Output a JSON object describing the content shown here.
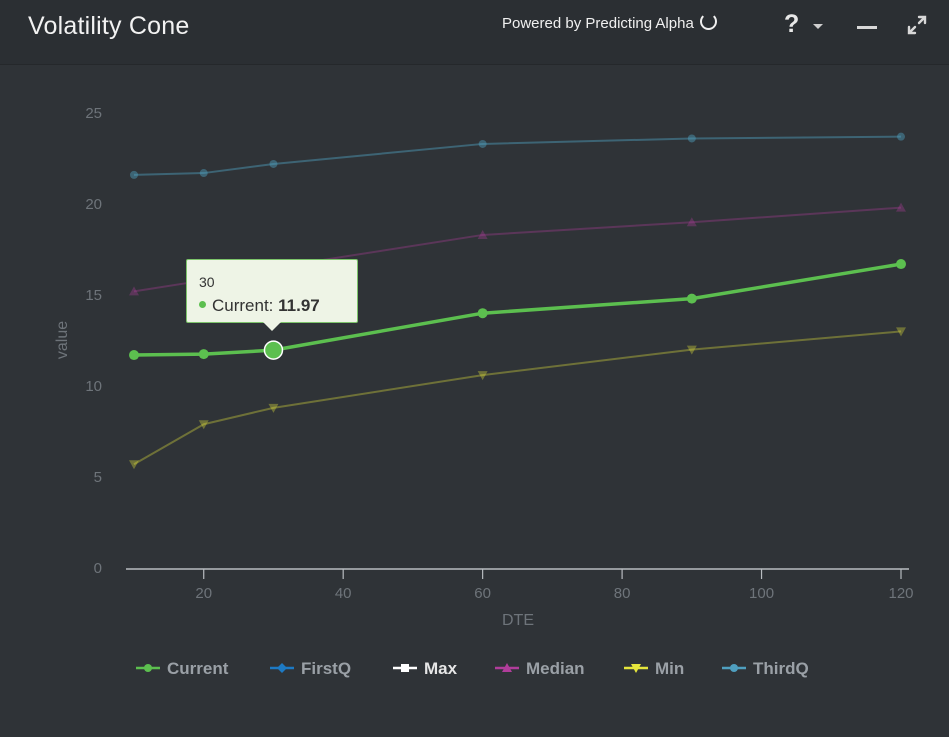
{
  "header": {
    "title": "Volatility Cone",
    "powered_by": "Powered by Predicting Alpha",
    "help_label": "?",
    "icons": [
      "refresh-icon",
      "help-icon",
      "chevron-down-icon",
      "minimize-icon",
      "expand-icon"
    ]
  },
  "tooltip": {
    "x_label": "30",
    "series_label": "Current:",
    "value": "11.97"
  },
  "chart_data": {
    "type": "line",
    "title": "",
    "xlabel": "DTE",
    "ylabel": "value",
    "xlim": [
      10,
      120
    ],
    "ylim": [
      0,
      25
    ],
    "x_ticks": [
      20,
      40,
      60,
      80,
      100,
      120
    ],
    "y_ticks": [
      0,
      5,
      10,
      15,
      20,
      25
    ],
    "grid": false,
    "legend": "bottom",
    "x": [
      10,
      20,
      30,
      60,
      90,
      120
    ],
    "series": [
      {
        "name": "Current",
        "color": "#5cbf4f",
        "marker": "circle",
        "values": [
          11.7,
          11.75,
          11.97,
          14.0,
          14.8,
          16.7
        ]
      },
      {
        "name": "FirstQ",
        "color": "#1d7ac4",
        "marker": "diamond",
        "values": [
          null,
          null,
          null,
          null,
          null,
          null
        ]
      },
      {
        "name": "Max",
        "color": "#ffffff",
        "marker": "square",
        "values": [
          null,
          null,
          null,
          null,
          null,
          null
        ]
      },
      {
        "name": "Median",
        "color": "#b03d9a",
        "marker": "triangle",
        "values": [
          15.2,
          15.8,
          16.5,
          18.3,
          19.0,
          19.8
        ]
      },
      {
        "name": "Min",
        "color": "#e6e63c",
        "marker": "triangle-down",
        "values": [
          5.7,
          7.9,
          8.8,
          10.6,
          12.0,
          13.0
        ]
      },
      {
        "name": "ThirdQ",
        "color": "#4f9fbf",
        "marker": "circle",
        "values": [
          21.6,
          21.7,
          22.2,
          23.3,
          23.6,
          23.7
        ]
      }
    ]
  }
}
